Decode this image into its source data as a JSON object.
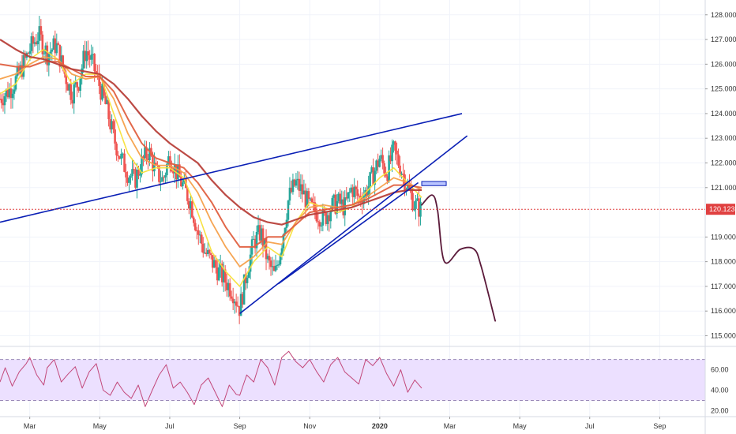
{
  "chart_data": [
    {
      "type": "candlestick",
      "title": "",
      "price_axis": {
        "range": [
          114.6,
          128.6
        ],
        "ticks": [
          "128.000",
          "127.000",
          "126.000",
          "125.000",
          "124.000",
          "123.000",
          "122.000",
          "121.000",
          "119.000",
          "118.000",
          "117.000",
          "116.000",
          "115.000"
        ],
        "tick_values": [
          128,
          127,
          126,
          125,
          124,
          123,
          122,
          121,
          119,
          118,
          117,
          116,
          115
        ]
      },
      "time_axis": {
        "labels": [
          "Mar",
          "May",
          "Jul",
          "Sep",
          "Nov",
          "2020",
          "Mar",
          "May",
          "Jul",
          "Sep"
        ],
        "label_positions_in_months": [
          2,
          4,
          6,
          8,
          10,
          12,
          14,
          16,
          18,
          20
        ],
        "range_in_months": [
          1.15,
          21.3
        ]
      },
      "current_price": {
        "label": "120.123",
        "value": 120.123,
        "color": "#e04040"
      },
      "colors": {
        "up": "#26a69a",
        "down": "#ef5350",
        "trendline": "#0a1fb5",
        "projection": "#5b1a3a",
        "ma_fast": "#f7e03a",
        "ma_mid": "#f5a04a",
        "ma_slow": "#e06040",
        "ma_long": "#b8403a"
      },
      "price_path": {
        "t": [
          1.15,
          1.45,
          1.7,
          2.0,
          2.25,
          2.5,
          2.75,
          3.0,
          3.2,
          3.4,
          3.6,
          3.8,
          4.0,
          4.2,
          4.4,
          4.6,
          4.8,
          5.0,
          5.2,
          5.4,
          5.6,
          5.8,
          6.0,
          6.2,
          6.4,
          6.6,
          6.8,
          7.0,
          7.2,
          7.4,
          7.6,
          7.8,
          8.0,
          8.2,
          8.4,
          8.6,
          8.8,
          9.0,
          9.2,
          9.4,
          9.6,
          9.8,
          10.0,
          10.2,
          10.4,
          10.6,
          10.8,
          11.0,
          11.2,
          11.4,
          11.6,
          11.8,
          12.0,
          12.2,
          12.4,
          12.6,
          12.8,
          13.0,
          13.2
        ],
        "price": [
          124.6,
          125.0,
          125.6,
          126.6,
          127.2,
          126.4,
          126.8,
          125.6,
          124.8,
          125.3,
          126.6,
          126.0,
          125.1,
          124.2,
          123.0,
          122.2,
          121.6,
          121.3,
          122.0,
          122.5,
          121.6,
          121.3,
          122.3,
          121.6,
          121.0,
          120.4,
          119.2,
          118.4,
          118.0,
          117.6,
          117.2,
          116.8,
          116.1,
          117.6,
          118.8,
          119.2,
          118.0,
          117.4,
          118.8,
          120.6,
          121.2,
          120.8,
          120.2,
          120.0,
          119.7,
          120.2,
          120.4,
          120.2,
          121.0,
          120.6,
          120.8,
          121.5,
          122.2,
          121.6,
          122.5,
          121.8,
          121.0,
          120.3,
          120.1
        ]
      },
      "ma_lines": [
        {
          "key": "fast",
          "t": [
            1.15,
            1.6,
            2.0,
            2.4,
            2.8,
            3.2,
            3.6,
            4.0,
            4.4,
            4.8,
            5.2,
            5.6,
            6.0,
            6.4,
            6.8,
            7.2,
            7.6,
            8.0,
            8.4,
            8.8,
            9.2,
            9.6,
            10.0,
            10.4,
            10.8,
            11.2,
            11.6,
            12.0,
            12.4,
            12.8,
            13.2
          ],
          "price": [
            124.8,
            125.2,
            126.2,
            126.6,
            126.2,
            125.2,
            125.6,
            125.6,
            124.0,
            122.4,
            121.6,
            121.8,
            121.8,
            121.4,
            120.0,
            118.4,
            117.6,
            117.0,
            118.0,
            118.6,
            118.2,
            119.6,
            120.4,
            120.2,
            120.0,
            120.2,
            120.8,
            121.4,
            121.8,
            121.2,
            120.6
          ]
        },
        {
          "key": "mid",
          "t": [
            1.15,
            1.6,
            2.0,
            2.4,
            2.8,
            3.2,
            3.6,
            4.0,
            4.4,
            4.8,
            5.2,
            5.6,
            6.0,
            6.4,
            6.8,
            7.2,
            7.6,
            8.0,
            8.4,
            8.8,
            9.2,
            9.6,
            10.0,
            10.4,
            10.8,
            11.2,
            11.6,
            12.0,
            12.4,
            12.8,
            13.2
          ],
          "price": [
            125.4,
            125.6,
            126.0,
            126.3,
            126.2,
            125.6,
            125.4,
            125.5,
            124.6,
            123.2,
            122.2,
            121.9,
            121.9,
            121.6,
            120.8,
            119.6,
            118.6,
            117.8,
            118.2,
            118.8,
            118.7,
            119.6,
            120.2,
            120.3,
            120.2,
            120.3,
            120.6,
            121.0,
            121.4,
            121.2,
            120.9
          ]
        },
        {
          "key": "slow",
          "t": [
            1.15,
            1.6,
            2.0,
            2.4,
            2.8,
            3.2,
            3.6,
            4.0,
            4.4,
            4.8,
            5.2,
            5.6,
            6.0,
            6.4,
            6.8,
            7.2,
            7.6,
            8.0,
            8.4,
            8.8,
            9.2,
            9.6,
            10.0,
            10.4,
            10.8,
            11.2,
            11.6,
            12.0,
            12.4,
            12.8,
            13.2
          ],
          "price": [
            126.0,
            125.9,
            125.9,
            126.1,
            126.1,
            125.8,
            125.5,
            125.5,
            124.9,
            123.8,
            122.8,
            122.2,
            122.0,
            121.8,
            121.2,
            120.4,
            119.4,
            118.6,
            118.6,
            119.0,
            119.0,
            119.5,
            120.0,
            120.1,
            120.2,
            120.3,
            120.5,
            120.8,
            121.1,
            121.1,
            121.0
          ]
        },
        {
          "key": "long",
          "t": [
            1.15,
            1.6,
            2.0,
            2.4,
            2.8,
            3.2,
            3.6,
            4.0,
            4.4,
            4.8,
            5.2,
            5.6,
            6.0,
            6.4,
            6.8,
            7.2,
            7.6,
            8.0,
            8.4,
            8.8,
            9.2,
            9.6,
            10.0,
            10.4,
            10.8,
            11.2,
            11.6,
            12.0,
            12.4,
            12.8,
            13.2
          ],
          "price": [
            127.0,
            126.6,
            126.3,
            126.2,
            126.0,
            125.8,
            125.7,
            125.6,
            125.2,
            124.6,
            123.9,
            123.3,
            122.8,
            122.4,
            122.0,
            121.3,
            120.7,
            120.2,
            119.8,
            119.6,
            119.5,
            119.7,
            119.9,
            120.0,
            120.1,
            120.2,
            120.4,
            120.6,
            120.8,
            120.9,
            120.9
          ]
        }
      ],
      "trendlines": [
        {
          "t": [
            1.15,
            14.35
          ],
          "price": [
            119.6,
            124.0
          ]
        },
        {
          "t": [
            8.0,
            14.5
          ],
          "price": [
            115.9,
            123.1
          ]
        },
        {
          "t": [
            9.1,
            13.1
          ],
          "price": [
            117.1,
            121.2
          ]
        }
      ],
      "forecast_path": {
        "t": [
          13.2,
          13.5,
          13.65,
          13.85,
          14.3,
          14.7,
          14.9,
          15.3
        ],
        "price": [
          120.3,
          120.7,
          120.1,
          118.0,
          118.5,
          118.5,
          117.8,
          115.6
        ]
      },
      "highlight_box": {
        "t": [
          13.2,
          13.9
        ],
        "price": [
          121.08,
          121.25
        ]
      }
    },
    {
      "type": "line",
      "title": "",
      "value_axis": {
        "range": [
          15,
          82
        ],
        "ticks": [
          "60.00",
          "40.00",
          "20.00"
        ],
        "tick_values": [
          60,
          40,
          20
        ],
        "band": [
          30,
          70
        ],
        "band_color": "#ece0ff"
      },
      "series": [
        {
          "color": "#c2477a",
          "t": [
            1.15,
            1.3,
            1.5,
            1.7,
            1.9,
            2.0,
            2.2,
            2.4,
            2.5,
            2.7,
            2.9,
            3.1,
            3.3,
            3.5,
            3.7,
            3.9,
            4.1,
            4.3,
            4.5,
            4.7,
            4.9,
            5.1,
            5.3,
            5.5,
            5.7,
            5.9,
            6.1,
            6.3,
            6.5,
            6.7,
            6.9,
            7.1,
            7.3,
            7.5,
            7.7,
            7.9,
            8.0,
            8.2,
            8.4,
            8.6,
            8.8,
            9.0,
            9.2,
            9.4,
            9.6,
            9.8,
            10.0,
            10.2,
            10.4,
            10.6,
            10.8,
            11.0,
            11.2,
            11.4,
            11.6,
            11.8,
            12.0,
            12.2,
            12.4,
            12.6,
            12.8,
            13.0,
            13.2
          ],
          "values": [
            48,
            62,
            44,
            58,
            66,
            72,
            55,
            45,
            62,
            70,
            48,
            56,
            63,
            42,
            58,
            66,
            40,
            35,
            48,
            38,
            32,
            45,
            24,
            40,
            55,
            65,
            42,
            48,
            38,
            26,
            45,
            52,
            38,
            24,
            45,
            36,
            35,
            55,
            48,
            70,
            62,
            45,
            72,
            78,
            68,
            62,
            70,
            58,
            48,
            65,
            72,
            58,
            52,
            46,
            70,
            64,
            72,
            56,
            44,
            60,
            38,
            50,
            42
          ]
        }
      ]
    }
  ]
}
